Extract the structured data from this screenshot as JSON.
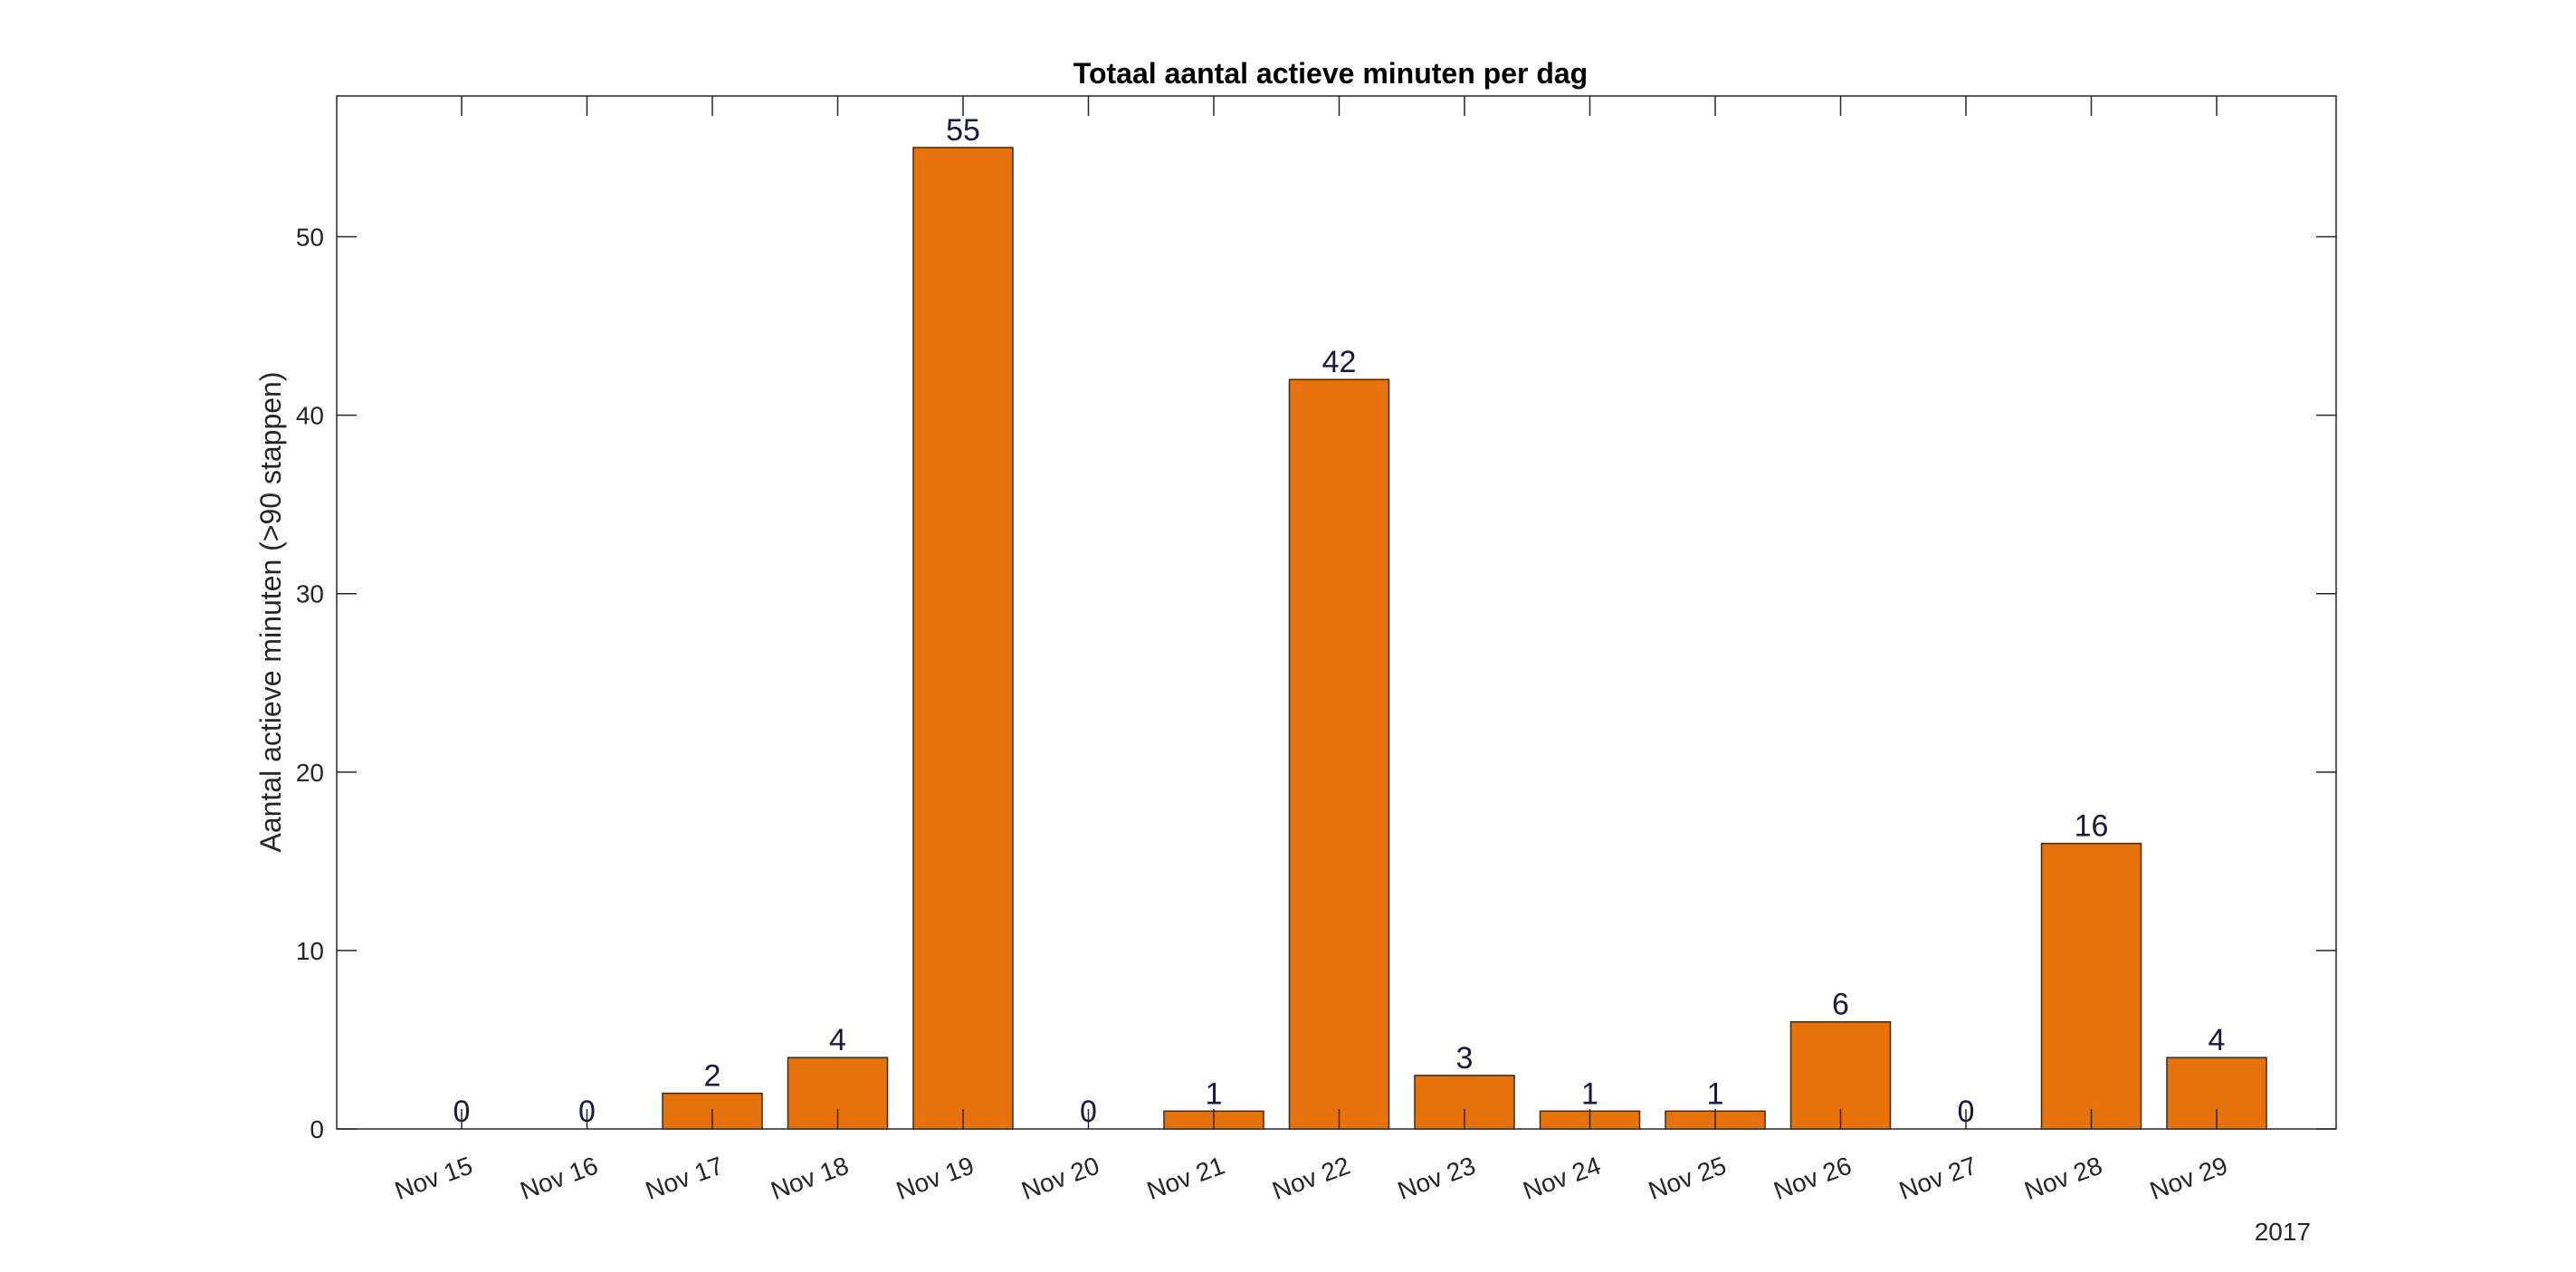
{
  "chart_data": {
    "type": "bar",
    "title": "Totaal aantal actieve minuten per dag",
    "xlabel": "",
    "ylabel": "Aantal actieve minuten (>90 stappen)",
    "year_label": "2017",
    "categories": [
      "Nov 15",
      "Nov 16",
      "Nov 17",
      "Nov 18",
      "Nov 19",
      "Nov 20",
      "Nov 21",
      "Nov 22",
      "Nov 23",
      "Nov 24",
      "Nov 25",
      "Nov 26",
      "Nov 27",
      "Nov 28",
      "Nov 29"
    ],
    "values": [
      0,
      0,
      2,
      4,
      55,
      0,
      1,
      42,
      3,
      1,
      1,
      6,
      0,
      16,
      4
    ],
    "ylim": [
      0,
      55
    ],
    "yticks": [
      0,
      10,
      20,
      30,
      40,
      50
    ],
    "grid": false,
    "colors": {
      "bar": "#E6720B",
      "bar_edge": "#3a2a1a",
      "label": "#1a1a40",
      "axis": "#262626"
    }
  }
}
